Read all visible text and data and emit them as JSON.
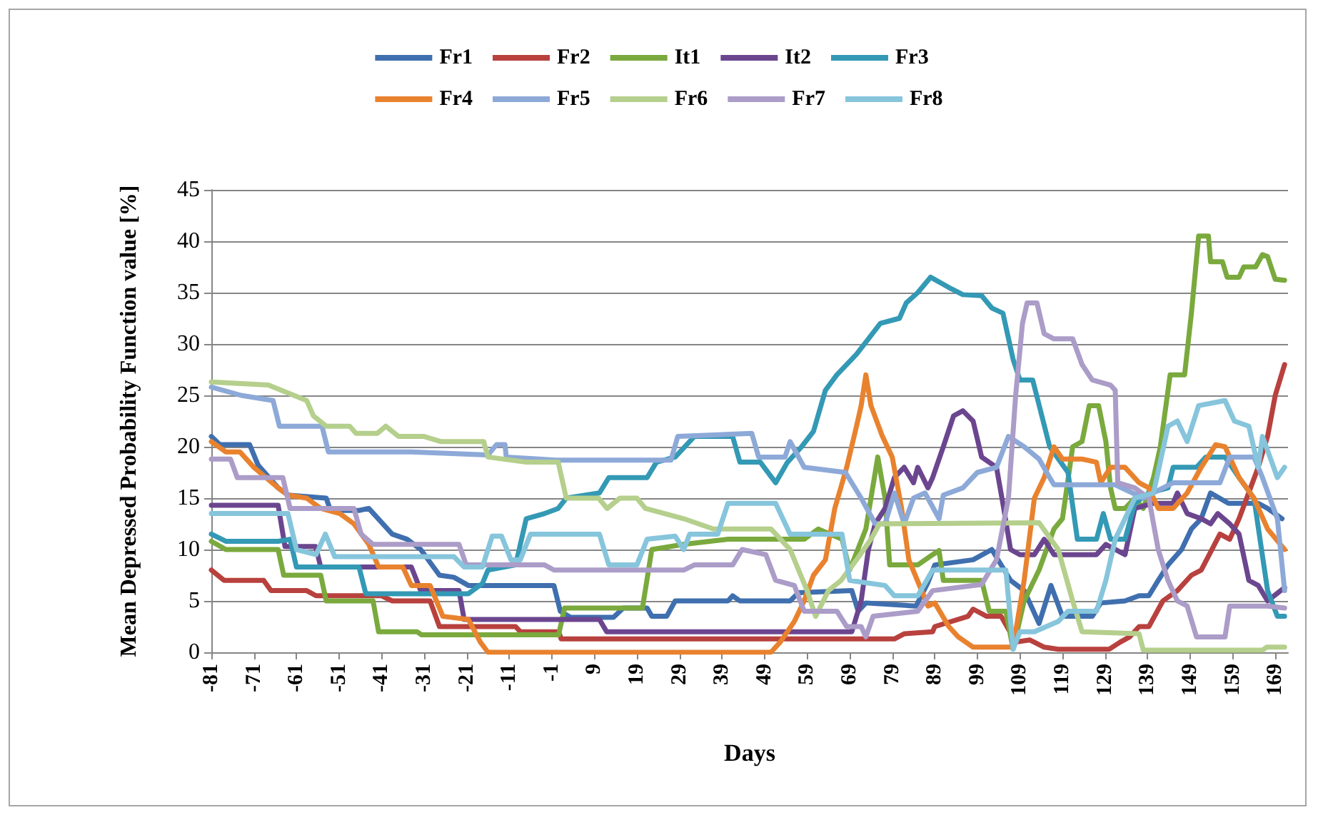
{
  "chart_data": {
    "type": "line",
    "xlabel": "Days",
    "ylabel": "Mean Depressed Probability Function value [%]",
    "xlim": [
      -81,
      172
    ],
    "xticks": [
      -81,
      -71,
      -61,
      -51,
      -41,
      -31,
      -21,
      -11,
      -1,
      9,
      19,
      29,
      39,
      49,
      59,
      69,
      79,
      89,
      99,
      109,
      119,
      129,
      139,
      149,
      159,
      169
    ],
    "ylim": [
      0,
      45
    ],
    "yticks": [
      0,
      5,
      10,
      15,
      20,
      25,
      30,
      35,
      40,
      45
    ],
    "grid": "y",
    "legend": "top",
    "marker": "none",
    "line_style": "solid",
    "series": [
      {
        "name": "Fr1",
        "color": "#3f6fae",
        "x": [
          -81,
          -79,
          -72,
          -70,
          -65.3,
          -63,
          -54,
          -53,
          -46.3,
          -44,
          -38.5,
          -35,
          -31.8,
          -27.4,
          -24,
          -20.6,
          -0.5,
          1,
          3.4,
          13.5,
          15.8,
          21.4,
          22.5,
          26,
          28,
          40.4,
          41.5,
          43.2,
          55,
          57,
          69.5,
          71,
          72.8,
          84.6,
          87.4,
          89,
          98,
          102.4,
          106.8,
          110,
          113.5,
          116.3,
          119,
          126,
          128,
          133.7,
          137,
          139.3,
          141.5,
          143.8,
          147,
          149.3,
          151.6,
          153.8,
          158,
          165,
          167.2,
          170.6
        ],
        "values": [
          21,
          20.2,
          20.2,
          18.2,
          16,
          15.3,
          15,
          13.8,
          13.8,
          14,
          11.5,
          11,
          10,
          7.5,
          7.3,
          6.5,
          6.5,
          4,
          3.4,
          3.4,
          4.3,
          4.3,
          3.5,
          3.5,
          5,
          5,
          5.5,
          5,
          5,
          5.8,
          6,
          4,
          4.8,
          4.5,
          6.8,
          8.5,
          9,
          10,
          7,
          6,
          2.8,
          6.5,
          3.5,
          3.5,
          4.8,
          5,
          5.5,
          5.5,
          7,
          8.5,
          10,
          12,
          13,
          15.5,
          14.5,
          14.5,
          14,
          13
        ]
      },
      {
        "name": "Fr2",
        "color": "#b8413e",
        "x": [
          -81,
          -78,
          -68.7,
          -67,
          -58.6,
          -56.4,
          -41,
          -38.5,
          -29.6,
          -27.4,
          -9.5,
          -8.4,
          0.6,
          1.2,
          79.5,
          81.8,
          88.5,
          89,
          96.8,
          98,
          101.2,
          104.6,
          108,
          111.3,
          114.7,
          118,
          130,
          132.6,
          134.8,
          137,
          139.3,
          142.6,
          146,
          149.3,
          151.6,
          156,
          158.3,
          160.5,
          165,
          167.2,
          169,
          171.2
        ],
        "values": [
          8,
          7,
          7,
          6,
          6,
          5.5,
          5.5,
          5,
          5,
          2.5,
          2.5,
          2,
          2,
          1.3,
          1.3,
          1.8,
          2,
          2.5,
          3.5,
          4.2,
          3.5,
          3.5,
          1,
          1.2,
          0.5,
          0.3,
          0.3,
          1,
          1.5,
          2.5,
          2.5,
          5,
          6,
          7.5,
          8,
          11.5,
          11,
          13,
          18,
          21,
          25,
          28
        ]
      },
      {
        "name": "It1",
        "color": "#7aa93d",
        "x": [
          -81,
          -77.6,
          -65.3,
          -64,
          -55.3,
          -54,
          -43,
          -41.7,
          -32.7,
          -31.6,
          0.6,
          2,
          20.3,
          22.5,
          30,
          40.4,
          58.3,
          61.6,
          67.2,
          69,
          72.8,
          75.6,
          77.3,
          78.4,
          85,
          88.5,
          90,
          91,
          100,
          101.8,
          105.7,
          107.4,
          110,
          113.5,
          117,
          119,
          121.4,
          123.6,
          125.3,
          127.5,
          129.2,
          130.3,
          131.4,
          133.7,
          136,
          138,
          140.4,
          142,
          144.3,
          147.7,
          149.3,
          151,
          153.3,
          153.8,
          156.6,
          157.7,
          160.5,
          161.6,
          164.4,
          166,
          167.2,
          169,
          171.2
        ],
        "values": [
          10.8,
          10,
          10,
          7.5,
          7.5,
          5,
          5,
          2,
          2,
          1.7,
          1.7,
          4.3,
          4.3,
          10,
          10.5,
          11,
          11,
          12,
          11,
          8,
          12,
          19,
          15,
          8.5,
          8.5,
          9.5,
          9.9,
          7,
          7,
          4,
          4,
          0.3,
          5,
          8,
          12,
          13,
          20,
          20.5,
          24,
          24,
          20.5,
          16,
          14,
          14,
          15,
          14,
          17,
          20,
          27,
          27,
          33,
          40.5,
          40.5,
          38,
          38,
          36.5,
          36.5,
          37.5,
          37.5,
          38.7,
          38.5,
          36.3,
          36.2
        ]
      },
      {
        "name": "It2",
        "color": "#6b468f",
        "x": [
          -81,
          -65.3,
          -63.7,
          -56.5,
          -55.3,
          -34,
          -31.8,
          -22.8,
          -21.6,
          10.2,
          11.9,
          69.5,
          71.7,
          73.4,
          75,
          77.3,
          79.5,
          81.8,
          84,
          85,
          87.4,
          88.5,
          91,
          93.4,
          95.6,
          98,
          100,
          103.5,
          105.2,
          106.8,
          109,
          112.4,
          114.7,
          117,
          127,
          129.2,
          133.7,
          136,
          140.4,
          145,
          146,
          148.3,
          151.6,
          153.8,
          155.5,
          158.3,
          160.5,
          162.8,
          165,
          167.2,
          171.2
        ],
        "values": [
          14.3,
          14.3,
          10.3,
          10.3,
          8.3,
          8.3,
          6,
          6,
          3.2,
          3.2,
          2,
          2,
          5,
          10,
          12.5,
          14,
          17,
          18,
          16.5,
          18,
          16,
          17,
          20,
          23,
          23.5,
          22.5,
          19,
          18,
          14,
          10,
          9.5,
          9.5,
          11,
          9.5,
          9.5,
          10.5,
          9.5,
          14,
          14.5,
          14.5,
          15.5,
          13.5,
          13,
          12.5,
          13.5,
          12.5,
          11.5,
          7,
          6.5,
          5,
          6.3
        ]
      },
      {
        "name": "Fr3",
        "color": "#3399b5",
        "x": [
          -81,
          -77.6,
          -65.3,
          -62.5,
          -61,
          -46.3,
          -44.7,
          -20.6,
          -17.3,
          -16,
          -9.5,
          -7,
          -2.7,
          0.5,
          2.4,
          10.2,
          12.4,
          21.4,
          23.6,
          28,
          32.5,
          41.5,
          43.2,
          48,
          51.6,
          54.4,
          57.7,
          60.5,
          63.3,
          66,
          70.6,
          73.4,
          76.2,
          80.7,
          82.3,
          85,
          88,
          92.3,
          95.6,
          100,
          102.4,
          105,
          107.4,
          109,
          112,
          116,
          118.6,
          120.3,
          122.5,
          127,
          128.6,
          130.3,
          133.7,
          136,
          139.3,
          143.8,
          145,
          150.5,
          152.7,
          157.2,
          160.5,
          164,
          167.2,
          169.5,
          171.2
        ],
        "values": [
          11.5,
          10.8,
          10.8,
          11,
          8.3,
          8.3,
          5.7,
          5.7,
          6.7,
          8,
          8.5,
          13,
          13.5,
          14,
          15,
          15.5,
          17,
          17,
          18.5,
          19,
          21,
          21,
          18.5,
          18.5,
          16.5,
          18.5,
          20,
          21.5,
          25.5,
          27,
          29,
          30.5,
          32,
          32.5,
          34,
          35,
          36.5,
          35.5,
          34.8,
          34.7,
          33.5,
          33,
          28.5,
          26.5,
          26.5,
          20,
          18.5,
          17.5,
          11,
          11,
          13.5,
          11,
          11,
          14.5,
          15.5,
          16,
          18,
          18,
          19,
          19,
          17,
          15,
          6,
          3.5,
          3.5
        ]
      },
      {
        "name": "Fr4",
        "color": "#e9822e",
        "x": [
          -81,
          -77.6,
          -74.3,
          -71,
          -65.3,
          -63,
          -58.6,
          -55.3,
          -50.8,
          -47.5,
          -44,
          -41.7,
          -36,
          -34,
          -29.6,
          -26.6,
          -20.6,
          -17.8,
          -16,
          50.5,
          52.7,
          56,
          58.3,
          60.5,
          63.3,
          65.5,
          68.3,
          70.6,
          71.7,
          72.8,
          74,
          76.7,
          79,
          81.2,
          82.9,
          87.4,
          89,
          92.3,
          94.5,
          98,
          107.4,
          110,
          112.4,
          114.7,
          117,
          119,
          123.6,
          127,
          128,
          130.3,
          133.7,
          137,
          139.3,
          141.5,
          145,
          148.3,
          151.6,
          155,
          157.2,
          160.5,
          164,
          167.2,
          171.2
        ],
        "values": [
          20.5,
          19.5,
          19.5,
          18,
          16,
          15.3,
          15,
          14,
          13.5,
          12.5,
          10.5,
          8.3,
          8.3,
          6.5,
          6.5,
          3.5,
          3.2,
          1,
          0,
          0,
          1,
          3,
          5,
          7.5,
          9,
          14,
          18,
          22,
          24,
          27,
          24,
          21,
          19,
          14,
          9,
          4.5,
          4.8,
          2.5,
          1.5,
          0.5,
          0.5,
          7,
          15,
          17,
          20,
          18.8,
          18.8,
          18.5,
          16.5,
          18,
          18,
          16.5,
          16,
          14,
          14,
          15.5,
          18,
          20.2,
          20,
          17,
          15,
          12,
          10
        ]
      },
      {
        "name": "Fr5",
        "color": "#8da9d8",
        "x": [
          -81,
          -74,
          -66.5,
          -65,
          -55,
          -53.5,
          -34,
          -16,
          -14,
          -12,
          -11.7,
          0,
          27,
          28.6,
          46,
          47.6,
          53.8,
          55,
          58.3,
          68,
          71.7,
          75,
          77.3,
          79.5,
          81.8,
          84,
          86.7,
          90,
          91,
          95.6,
          99,
          103.5,
          106.3,
          110,
          113.5,
          116,
          117,
          131.4,
          138,
          145,
          156,
          158.3,
          164,
          166,
          169.5,
          171.2
        ],
        "values": [
          25.8,
          25,
          24.5,
          22,
          22,
          19.5,
          19.5,
          19.2,
          20.2,
          20.2,
          19,
          18.7,
          18.7,
          21,
          21.3,
          19,
          19,
          20.5,
          18,
          17.5,
          15,
          12.5,
          12.5,
          15.5,
          12.5,
          15,
          15.5,
          13,
          15.3,
          16,
          17.5,
          18,
          21,
          20,
          18.8,
          17,
          16.3,
          16.3,
          15,
          16.5,
          16.5,
          19,
          19,
          17,
          13,
          6
        ]
      },
      {
        "name": "Fr6",
        "color": "#b5cf8c",
        "x": [
          -81,
          -67.6,
          -58.6,
          -57,
          -54,
          -48.5,
          -47,
          -42,
          -40,
          -37,
          -31,
          -27,
          -17,
          -16,
          -7,
          0.5,
          2.4,
          10,
          12,
          15,
          19,
          21,
          30,
          37,
          50.5,
          55,
          59,
          61,
          64,
          67,
          70.6,
          74,
          76,
          113.5,
          118,
          121.4,
          123.6,
          137,
          138,
          166,
          167,
          171.2
        ],
        "values": [
          26.3,
          26,
          24.5,
          23,
          22,
          22,
          21.3,
          21.3,
          22,
          21,
          21,
          20.5,
          20.5,
          19,
          18.5,
          18.5,
          15,
          15,
          14,
          15,
          15,
          14,
          13,
          12,
          12,
          10,
          6,
          3.5,
          6,
          7,
          9,
          11,
          12.5,
          12.6,
          10,
          5,
          2,
          1.8,
          0.2,
          0.2,
          0.5,
          0.5
        ]
      },
      {
        "name": "Fr7",
        "color": "#ab9cc8",
        "x": [
          -81,
          -76.5,
          -74.9,
          -64.2,
          -62.5,
          -47.5,
          -45.8,
          -43,
          -22.8,
          -21.1,
          -2.7,
          -0.5,
          30,
          32.5,
          41.5,
          43.7,
          49.3,
          51.6,
          56,
          58.3,
          66,
          68.3,
          71.7,
          72.8,
          74.5,
          85,
          88.5,
          100,
          103.5,
          106.3,
          108,
          109.6,
          110.7,
          113,
          114.7,
          117,
          121.4,
          123.6,
          126,
          130.3,
          131.4,
          132,
          136,
          139.3,
          141.5,
          143.8,
          146,
          148.3,
          150.5,
          157.2,
          158.3,
          167.2,
          171.2
        ],
        "values": [
          18.8,
          18.8,
          17,
          17,
          14,
          14,
          11.5,
          10.5,
          10.5,
          8.5,
          8.5,
          8,
          8,
          8.5,
          8.5,
          10,
          9.5,
          7,
          6.5,
          4,
          4,
          2.5,
          2.5,
          1.5,
          3.5,
          4,
          6,
          6.6,
          9,
          15,
          25,
          32,
          34,
          34,
          31,
          30.5,
          30.5,
          28,
          26.5,
          26,
          25.5,
          16.5,
          16,
          15,
          10,
          7,
          5,
          4.5,
          1.5,
          1.5,
          4.5,
          4.5,
          4.3
        ]
      },
      {
        "name": "Fr8",
        "color": "#86c5dc",
        "x": [
          -81,
          -63,
          -61,
          -56.4,
          -54.2,
          -52,
          -24,
          -21.6,
          -17.3,
          -15,
          -12.8,
          -10.6,
          -8.4,
          -6,
          10.2,
          12.4,
          19,
          21.4,
          28,
          30,
          31.4,
          38,
          40.4,
          51.6,
          55,
          67.2,
          69,
          77.3,
          79.5,
          85,
          88.5,
          105.7,
          107.4,
          109,
          112.4,
          118,
          120.3,
          127,
          129.2,
          131.4,
          136,
          140.4,
          143.8,
          146,
          148.3,
          151,
          157.2,
          159.4,
          162.8,
          165,
          166,
          169.5,
          171.2
        ],
        "values": [
          13.5,
          13.5,
          10,
          9.5,
          11.5,
          9.3,
          9.3,
          8.3,
          8.3,
          11.3,
          11.3,
          9,
          9,
          11.5,
          11.5,
          8.5,
          8.5,
          11,
          11.3,
          10,
          11.5,
          11.5,
          14.5,
          14.5,
          11.5,
          11.5,
          7,
          6.5,
          5.5,
          5.5,
          8,
          8,
          0.3,
          2,
          2,
          3,
          4,
          4,
          7,
          11,
          15,
          15.5,
          22,
          22.5,
          20.5,
          24,
          24.5,
          22.5,
          22,
          18,
          21,
          17,
          18
        ]
      }
    ]
  }
}
